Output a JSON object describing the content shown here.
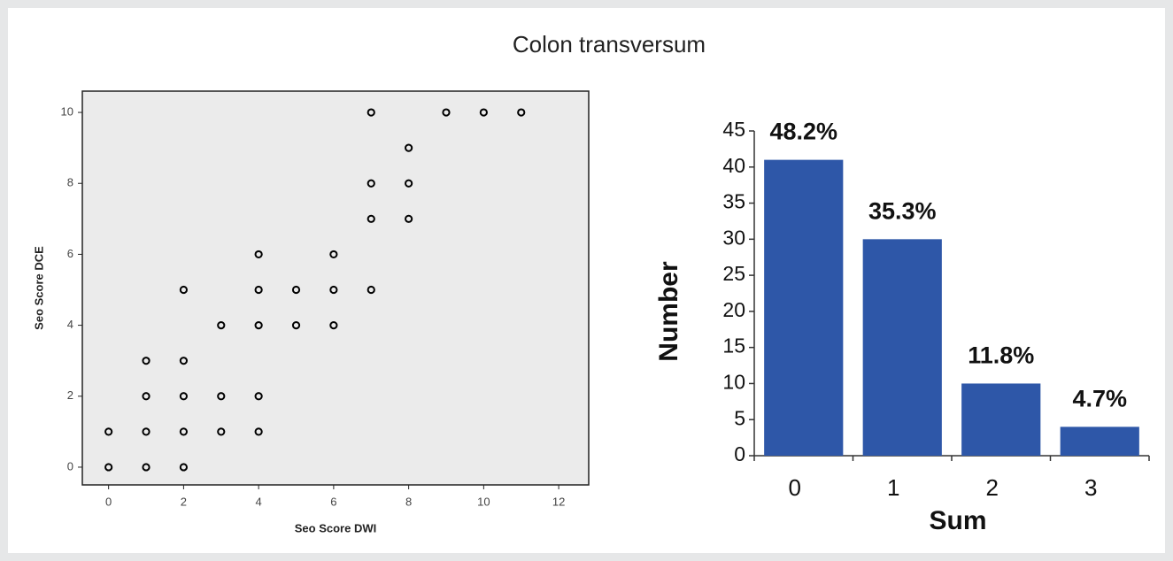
{
  "title": "Colon transversum",
  "chart_data": [
    {
      "type": "scatter",
      "xlabel": "Seo Score DWI",
      "ylabel": "Seo Score DCE",
      "x": [
        0,
        0,
        1,
        1,
        1,
        1,
        2,
        2,
        2,
        2,
        2,
        3,
        3,
        3,
        4,
        4,
        4,
        4,
        4,
        5,
        5,
        6,
        6,
        6,
        7,
        7,
        7,
        7,
        8,
        8,
        8,
        9,
        10,
        11
      ],
      "y": [
        0,
        1,
        0,
        1,
        2,
        3,
        0,
        1,
        2,
        3,
        5,
        1,
        2,
        4,
        1,
        2,
        4,
        5,
        6,
        4,
        5,
        4,
        5,
        6,
        5,
        7,
        8,
        10,
        7,
        8,
        9,
        10,
        10,
        10
      ],
      "color": "#000000",
      "xlim": [
        -0.7,
        12.8
      ],
      "ylim": [
        -0.5,
        10.6
      ],
      "xticks": [
        0,
        2,
        4,
        6,
        8,
        10,
        12
      ],
      "yticks": [
        0,
        2,
        4,
        6,
        8,
        10
      ]
    },
    {
      "type": "bar",
      "xlabel": "Sum",
      "ylabel": "Number",
      "categories": [
        "0",
        "1",
        "2",
        "3"
      ],
      "values": [
        41,
        30,
        10,
        4
      ],
      "annotations": [
        "48.2%",
        "35.3%",
        "11.8%",
        "4.7%"
      ],
      "color": "#2e57a8",
      "ylim": [
        0,
        45
      ],
      "yticks": [
        0,
        5,
        10,
        15,
        20,
        25,
        30,
        35,
        40,
        45
      ]
    }
  ]
}
